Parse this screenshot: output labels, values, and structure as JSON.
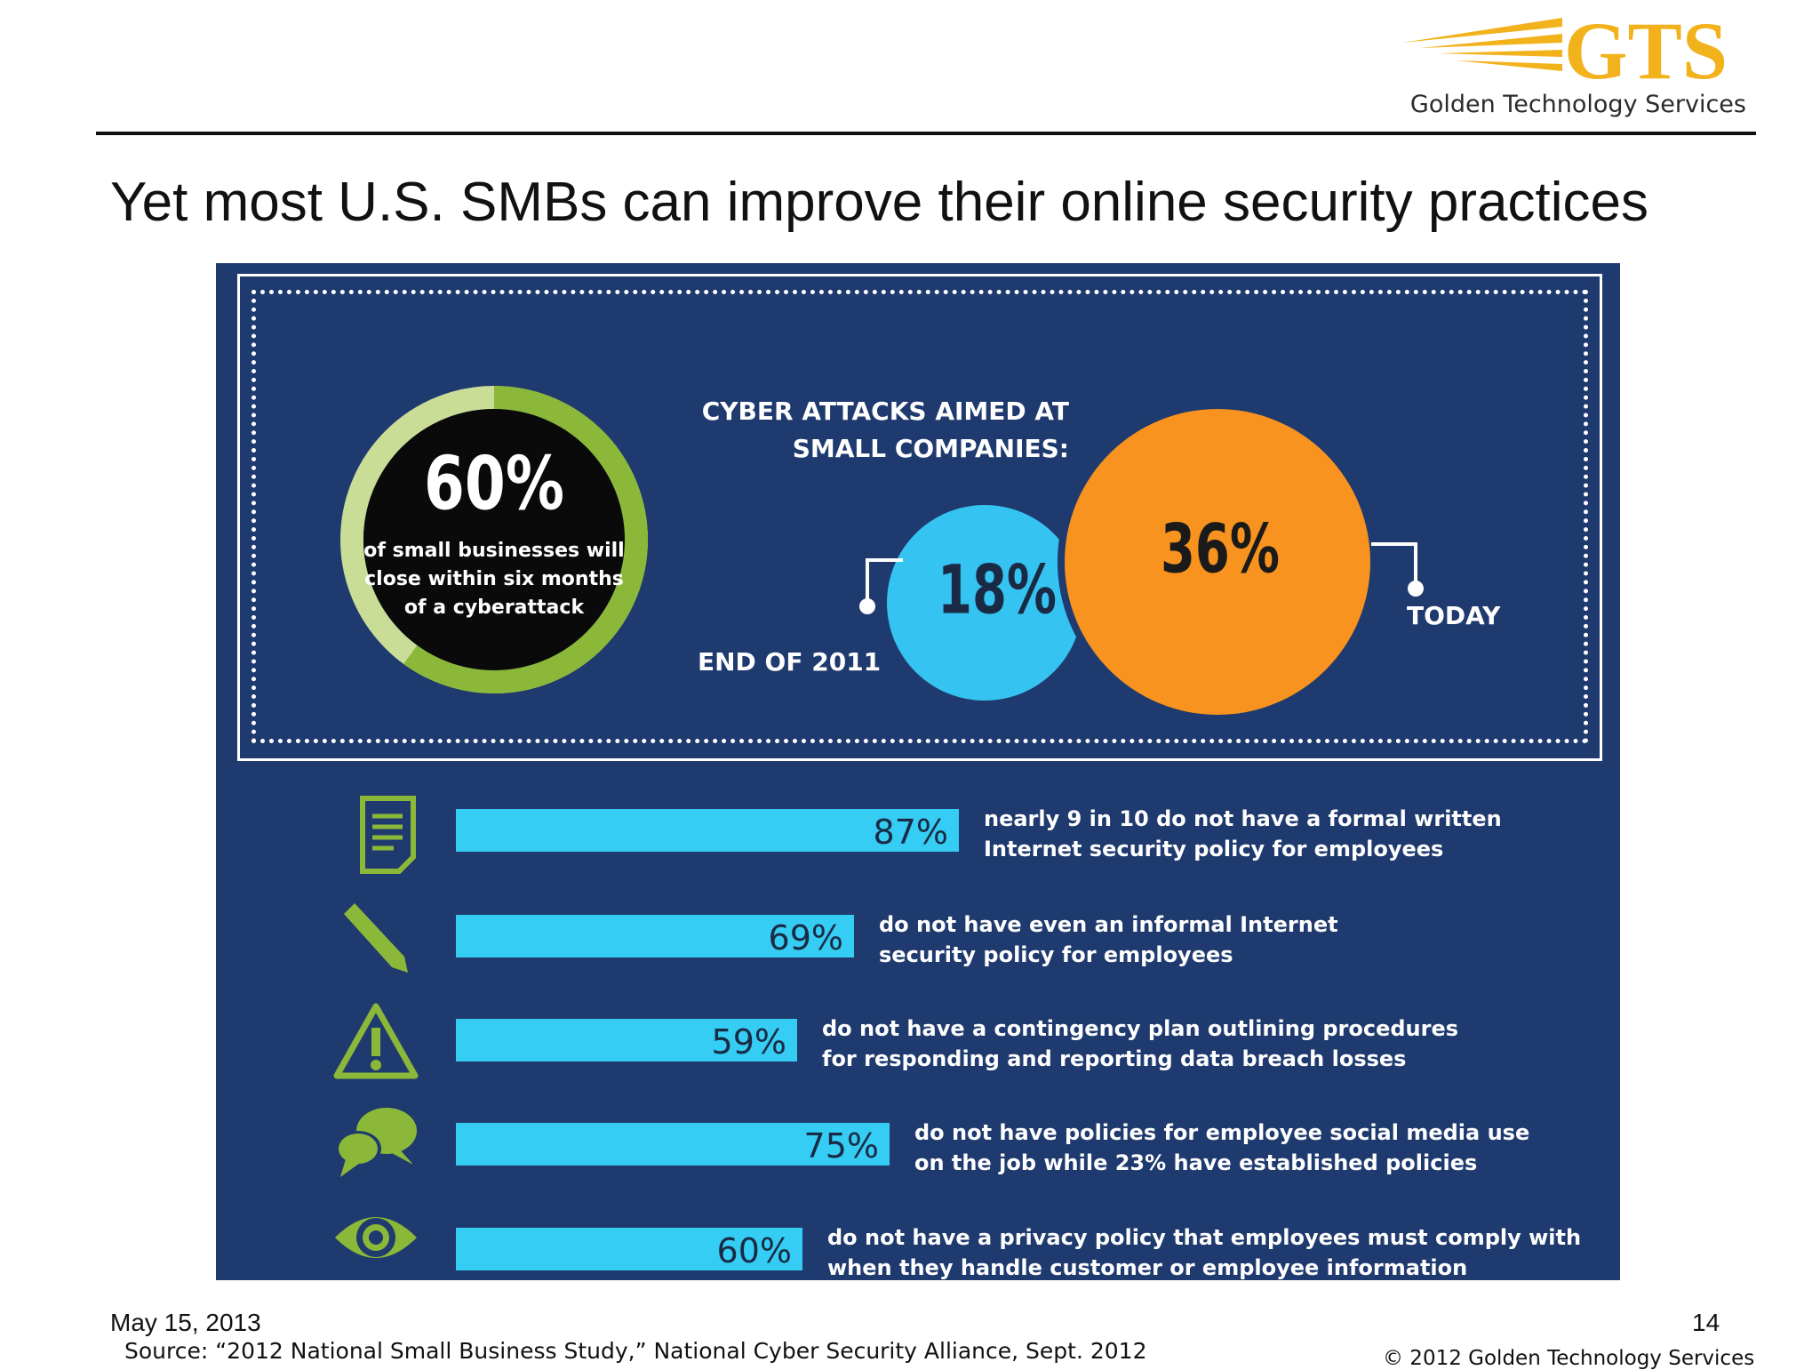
{
  "header": {
    "logo_text": "GTS",
    "logo_subtitle": "Golden Technology Services",
    "title": "Yet most U.S. SMBs can improve their online security practices"
  },
  "infographic": {
    "ring": {
      "value": "60%",
      "text_lines": [
        "of small businesses will",
        "close within six months",
        "of a cyberattack"
      ]
    },
    "attacks": {
      "heading_lines": [
        "CYBER ATTACKS AIMED AT",
        "SMALL COMPANIES:"
      ],
      "end_2011_value": "18%",
      "end_2011_label": "END OF 2011",
      "today_value": "36%",
      "today_label": "TODAY"
    },
    "stats": [
      {
        "icon": "document-icon",
        "value": "87%",
        "fraction": 0.87,
        "lines": [
          "nearly 9 in 10 do not have a formal written",
          "Internet security policy for employees"
        ]
      },
      {
        "icon": "pencil-icon",
        "value": "69%",
        "fraction": 0.69,
        "lines": [
          "do not have even an informal Internet",
          "security policy for employees"
        ]
      },
      {
        "icon": "warning-icon",
        "value": "59%",
        "fraction": 0.59,
        "lines": [
          "do not have a contingency plan outlining procedures",
          "for responding and reporting data breach losses"
        ]
      },
      {
        "icon": "chat-bubbles-icon",
        "value": "75%",
        "fraction": 0.75,
        "lines": [
          "do not have policies for employee social media use",
          "on the job while 23% have established policies"
        ]
      },
      {
        "icon": "eye-icon",
        "value": "60%",
        "fraction": 0.6,
        "lines": [
          "do not have a privacy policy that employees must comply with",
          "when they handle customer or employee information"
        ]
      }
    ]
  },
  "footer": {
    "date": "May 15, 2013",
    "page": "14",
    "source": "Source: “2012 National Small Business Study,” National Cyber Security Alliance, Sept. 2012",
    "copyright": "© 2012 Golden Technology Services"
  },
  "colors": {
    "panel_bg": "#1e3a6e",
    "bar": "#35cdf4",
    "orange": "#f7931e",
    "green": "#8cb83a",
    "light_green": "#c9dd97",
    "gold": "#f2b21c"
  }
}
